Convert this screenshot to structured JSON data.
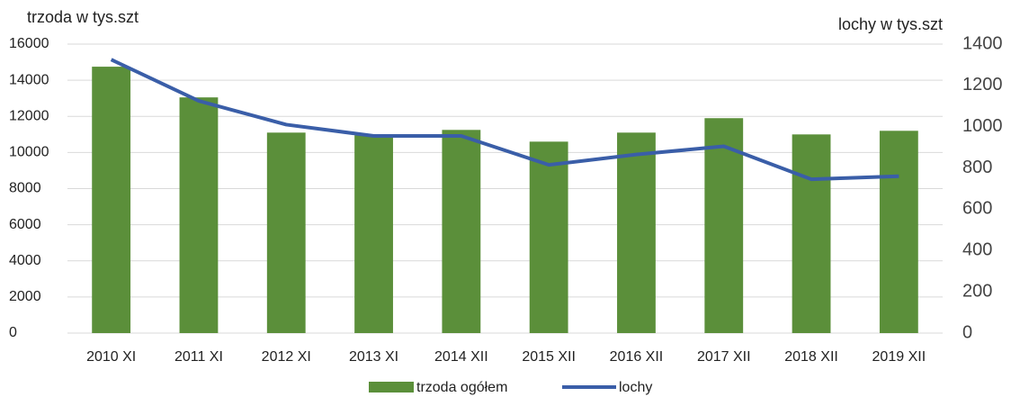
{
  "chart_data": {
    "type": "bar-line",
    "y_label": "trzoda w tys.szt",
    "y2_label": "lochy w tys.szt",
    "categories": [
      "2010 XI",
      "2011 XI",
      "2012 XI",
      "2013 XI",
      "2014 XII",
      "2015 XII",
      "2016 XII",
      "2017 XII",
      "2018 XII",
      "2019 XII"
    ],
    "series": [
      {
        "name": "trzoda ogółem",
        "type": "bar",
        "color": "#5b8f3a",
        "values": [
          14750,
          13050,
          11100,
          10950,
          11250,
          10600,
          11100,
          11900,
          11000,
          11200
        ]
      },
      {
        "name": "lochy",
        "type": "line",
        "axis": "y2",
        "color": "#3a5ea8",
        "values": [
          1325,
          1125,
          1010,
          955,
          955,
          815,
          865,
          905,
          745,
          760
        ]
      }
    ],
    "ylim": [
      0,
      16000
    ],
    "yticks": [
      0,
      2000,
      4000,
      6000,
      8000,
      10000,
      12000,
      14000,
      16000
    ],
    "y2lim": [
      0,
      1400
    ],
    "y2ticks": [
      0,
      200,
      400,
      600,
      800,
      1000,
      1200,
      1400
    ],
    "grid": true,
    "legend": "bottom"
  }
}
